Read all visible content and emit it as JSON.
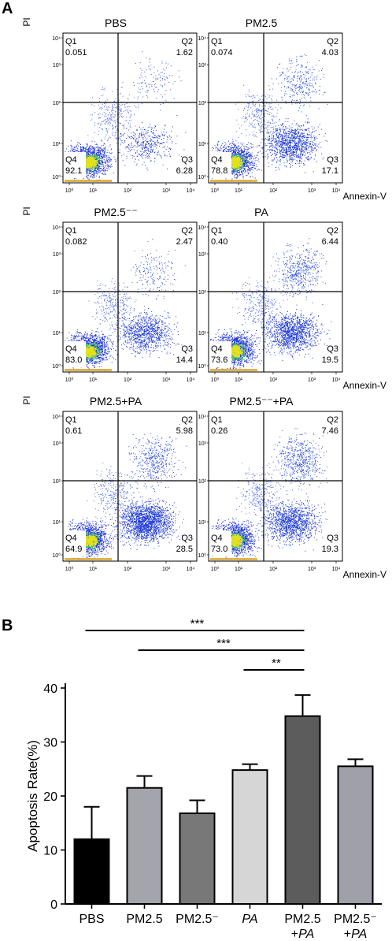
{
  "panel_a_label": "A",
  "panel_b_label": "B",
  "flow": {
    "y_axis_label": "PI",
    "x_axis_label": "Annexin-V",
    "decade_labels": [
      "10⁰",
      "10¹",
      "10²",
      "10³",
      "10⁴"
    ],
    "plots": [
      {
        "title": "PBS",
        "q1": {
          "name": "Q1",
          "value": "0.051"
        },
        "q2": {
          "name": "Q2",
          "value": "1.62"
        },
        "q3": {
          "name": "Q3",
          "value": "6.28"
        },
        "q4": {
          "name": "Q4",
          "value": "92.1"
        }
      },
      {
        "title": "PM2.5",
        "q1": {
          "name": "Q1",
          "value": "0.074"
        },
        "q2": {
          "name": "Q2",
          "value": "4.03"
        },
        "q3": {
          "name": "Q3",
          "value": "17.1"
        },
        "q4": {
          "name": "Q4",
          "value": "78.8"
        }
      },
      {
        "title": "PM2.5⁻⁻",
        "q1": {
          "name": "Q1",
          "value": "0.082"
        },
        "q2": {
          "name": "Q2",
          "value": "2.47"
        },
        "q3": {
          "name": "Q3",
          "value": "14.4"
        },
        "q4": {
          "name": "Q4",
          "value": "83.0"
        }
      },
      {
        "title": "PA",
        "q1": {
          "name": "Q1",
          "value": "0.40"
        },
        "q2": {
          "name": "Q2",
          "value": "6.44"
        },
        "q3": {
          "name": "Q3",
          "value": "19.5"
        },
        "q4": {
          "name": "Q4",
          "value": "73.6"
        }
      },
      {
        "title": "PM2.5+PA",
        "q1": {
          "name": "Q1",
          "value": "0.61"
        },
        "q2": {
          "name": "Q2",
          "value": "5.98"
        },
        "q3": {
          "name": "Q3",
          "value": "28.5"
        },
        "q4": {
          "name": "Q4",
          "value": "64.9"
        }
      },
      {
        "title": "PM2.5⁻⁻+PA",
        "q1": {
          "name": "Q1",
          "value": "0.26"
        },
        "q2": {
          "name": "Q2",
          "value": "7.46"
        },
        "q3": {
          "name": "Q3",
          "value": "19.3"
        },
        "q4": {
          "name": "Q4",
          "value": "73.0"
        }
      }
    ]
  },
  "chart_data": {
    "type": "bar",
    "categories": [
      "PBS",
      "PM2.5",
      "PM2.5⁻",
      "PA",
      "PM2.5\n+PA",
      "PM2.5⁻\n+PA"
    ],
    "values": [
      12,
      21.5,
      16.8,
      24.8,
      34.8,
      25.5
    ],
    "errors": [
      6,
      2.2,
      2.4,
      1.1,
      3.9,
      1.3
    ],
    "colors": [
      "#000000",
      "#a4a4ac",
      "#787878",
      "#d6d6d6",
      "#5c5c5c",
      "#a0a0a8"
    ],
    "italic_parts": [
      "",
      "",
      "",
      "PA",
      "PA",
      "PA"
    ],
    "title": "",
    "xlabel": "",
    "ylabel": "Apoptosis Rate(%)",
    "ylim": [
      0,
      40
    ],
    "yticks": [
      0,
      10,
      20,
      30,
      40
    ],
    "significance": [
      {
        "from": 0,
        "to": 4,
        "label": "***"
      },
      {
        "from": 1,
        "to": 4,
        "label": "***"
      },
      {
        "from": 3,
        "to": 4,
        "label": "**"
      }
    ]
  }
}
